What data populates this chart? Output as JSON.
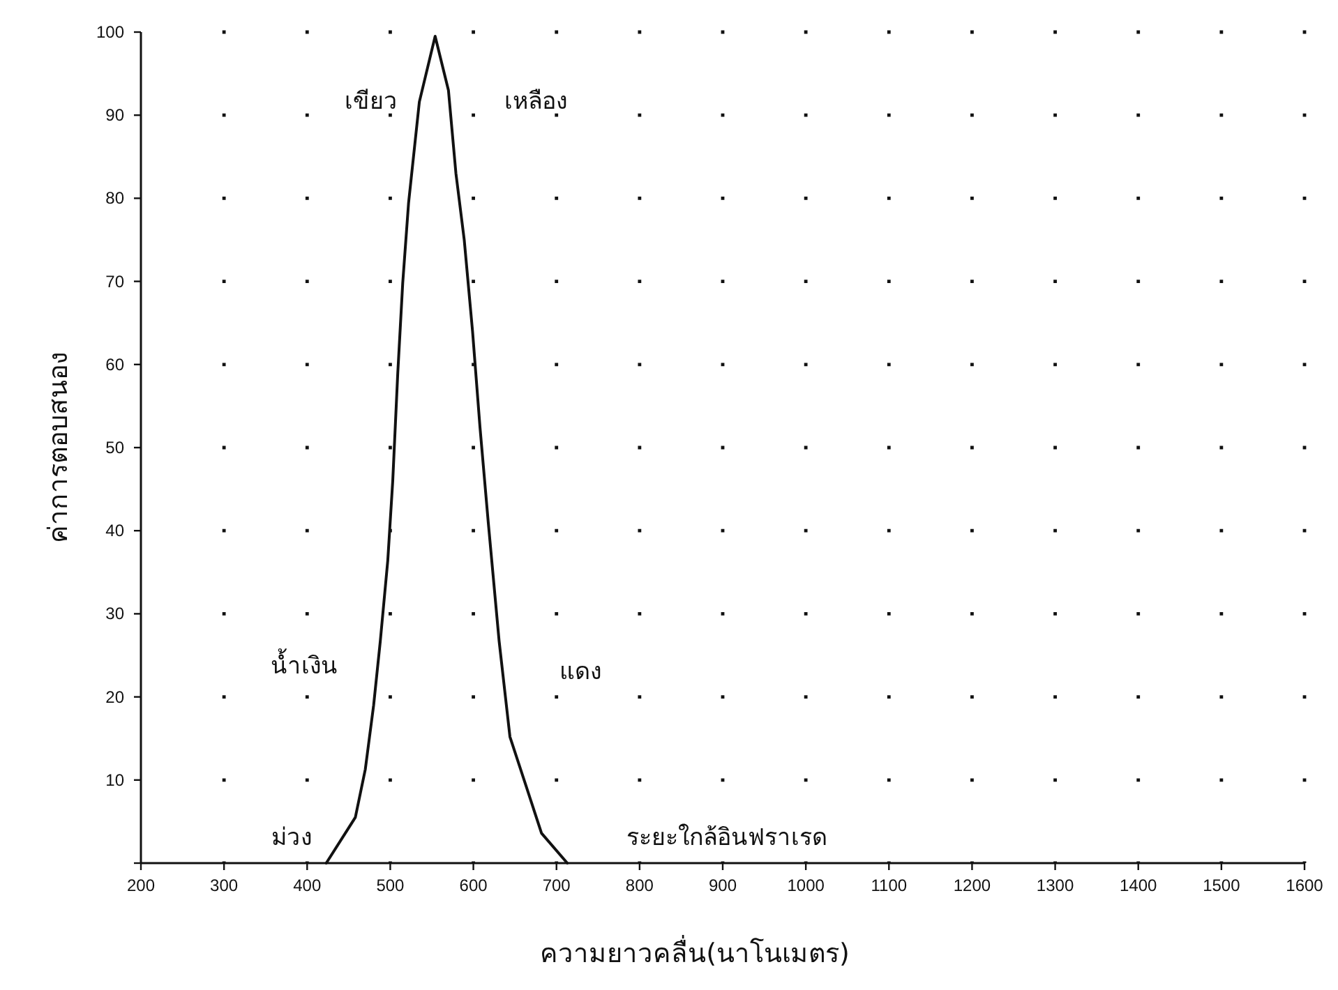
{
  "chart_data": {
    "type": "line",
    "xlabel": "ความยาวคลื่น(นาโนเมตร)",
    "ylabel": "ค่าการตอบสนอง",
    "xlim": [
      200,
      1600
    ],
    "xticks": [
      200,
      300,
      400,
      500,
      600,
      700,
      800,
      900,
      1000,
      1100,
      1200,
      1300,
      1400,
      1500,
      1600
    ],
    "ylim": [
      0,
      100
    ],
    "yticks": [
      {
        "value": 0,
        "label": null
      },
      10,
      20,
      30,
      40,
      50,
      60,
      70,
      80,
      90,
      100
    ],
    "grid": true,
    "marker": "none",
    "line_style": "solid",
    "series": [
      {
        "color": "#111111",
        "x": [
          423,
          458,
          470,
          480,
          488,
          497,
          503,
          509,
          515,
          522,
          535,
          554,
          570,
          579,
          589,
          599,
          608,
          618,
          631,
          644,
          663,
          682,
          713
        ],
        "values": [
          0,
          5.5,
          11.3,
          19,
          26.7,
          36.4,
          46,
          58.9,
          69.8,
          79.4,
          91.6,
          99.5,
          93,
          83,
          75,
          64,
          52.4,
          40.9,
          26.7,
          15.2,
          9.4,
          3.6,
          0
        ]
      }
    ],
    "annotations": [
      "เขียว",
      "เหลือง",
      "น้ำเงิน",
      "แดง",
      "ม่วง",
      "ระยะใกล้อินฟราเรด"
    ]
  }
}
